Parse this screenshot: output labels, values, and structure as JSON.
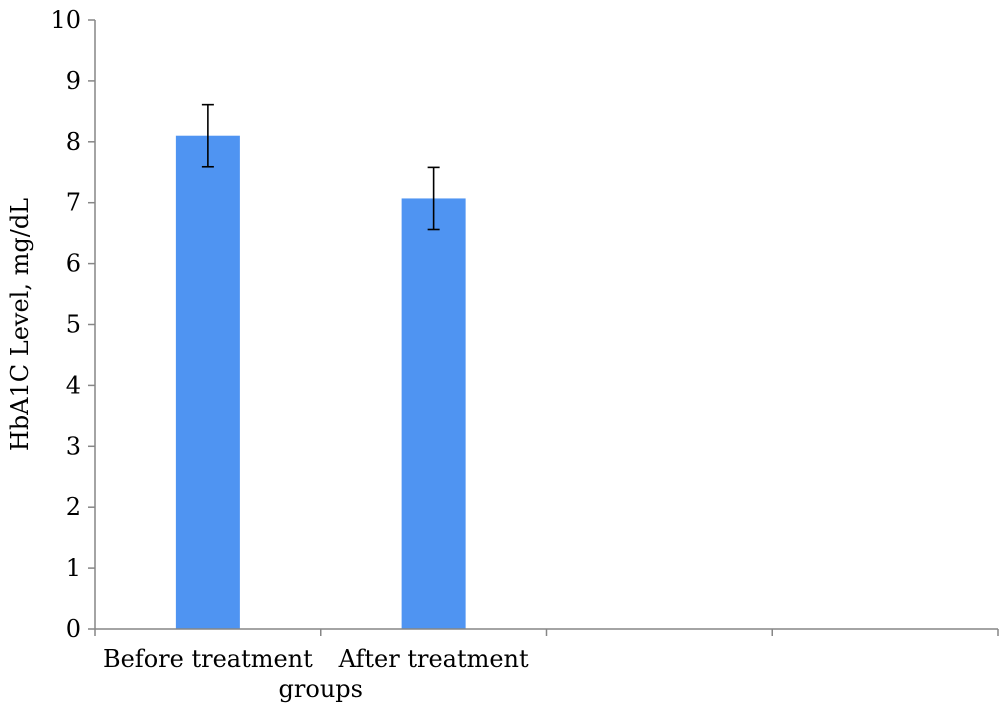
{
  "chart_data": {
    "type": "bar",
    "title": "",
    "categories": [
      "Before treatment",
      "After treatment",
      "",
      ""
    ],
    "series": [
      {
        "values": [
          8.1,
          7.07,
          null,
          null
        ],
        "error": [
          0.51,
          0.51,
          null,
          null
        ],
        "color": "#4f94f2"
      }
    ],
    "xlabel": "groups",
    "ylabel": "HbA1C Level, mg/dL",
    "ylim": [
      0,
      10
    ],
    "yticks": [
      0,
      1,
      2,
      3,
      4,
      5,
      6,
      7,
      8,
      9,
      10
    ],
    "grid": false,
    "legend": "none"
  }
}
